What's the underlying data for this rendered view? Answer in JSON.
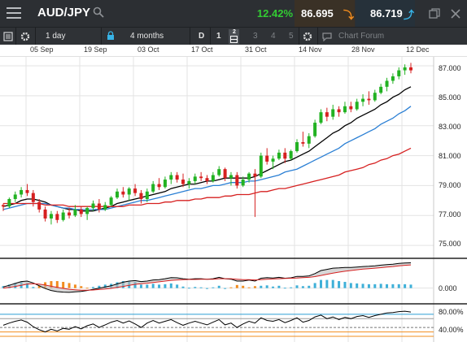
{
  "header": {
    "symbol": "AUD/JPY",
    "change_pct": "12.42%",
    "sell_price": "86.695",
    "buy_price": "86.719",
    "sell_arrow": "down-arrow",
    "buy_arrow": "up-arrow",
    "colors": {
      "positive": "#33cc33",
      "sell_arrow": "#f28c1e",
      "buy_arrow": "#37b3e6"
    }
  },
  "toolbar": {
    "interval": "1 day",
    "range": "4 months",
    "chart_type": "D",
    "layouts": [
      "1",
      "2",
      "3",
      "4",
      "5"
    ],
    "forum": "Chart Forum"
  },
  "date_axis": [
    "05 Sep",
    "19 Sep",
    "03 Oct",
    "17 Oct",
    "31 Oct",
    "14 Nov",
    "28 Nov",
    "12 Dec"
  ],
  "price_axis": [
    "87.000",
    "85.000",
    "83.000",
    "81.000",
    "79.000",
    "77.000",
    "75.000"
  ],
  "macd_axis": [
    "0.000"
  ],
  "rsi_axis": [
    "80.00%",
    "40.00%"
  ],
  "chart_data": {
    "type": "line",
    "ylim": [
      74.3,
      87.6
    ],
    "ohlc": [
      [
        77.7,
        77.8,
        77.3,
        77.6
      ],
      [
        77.6,
        78.2,
        77.5,
        78.1
      ],
      [
        78.1,
        78.6,
        77.9,
        78.4
      ],
      [
        78.4,
        78.9,
        78.2,
        78.7
      ],
      [
        78.7,
        79.1,
        78.3,
        78.5
      ],
      [
        78.5,
        78.7,
        77.6,
        77.9
      ],
      [
        77.9,
        78.1,
        77.2,
        77.4
      ],
      [
        77.4,
        77.6,
        76.6,
        76.8
      ],
      [
        76.8,
        77.3,
        76.4,
        77.1
      ],
      [
        77.1,
        77.3,
        76.5,
        76.7
      ],
      [
        76.7,
        77.4,
        76.6,
        77.2
      ],
      [
        77.2,
        77.5,
        76.8,
        77.0
      ],
      [
        77.0,
        77.7,
        76.9,
        77.4
      ],
      [
        77.4,
        77.6,
        76.9,
        77.1
      ],
      [
        77.1,
        77.6,
        76.7,
        77.5
      ],
      [
        77.5,
        78.0,
        77.3,
        77.8
      ],
      [
        77.8,
        78.1,
        77.2,
        77.4
      ],
      [
        77.4,
        77.9,
        77.3,
        77.7
      ],
      [
        77.7,
        78.3,
        77.6,
        78.2
      ],
      [
        78.2,
        78.8,
        78.1,
        78.6
      ],
      [
        78.6,
        78.9,
        78.2,
        78.4
      ],
      [
        78.4,
        78.9,
        78.0,
        78.8
      ],
      [
        78.8,
        79.1,
        78.3,
        78.5
      ],
      [
        78.5,
        78.7,
        77.8,
        78.1
      ],
      [
        78.1,
        78.8,
        77.9,
        78.6
      ],
      [
        78.6,
        79.3,
        78.5,
        79.1
      ],
      [
        79.1,
        79.5,
        78.7,
        78.9
      ],
      [
        78.9,
        79.6,
        78.8,
        79.4
      ],
      [
        79.4,
        79.9,
        79.1,
        79.7
      ],
      [
        79.7,
        79.9,
        79.2,
        79.4
      ],
      [
        79.4,
        79.8,
        78.9,
        79.1
      ],
      [
        79.1,
        79.5,
        78.8,
        79.3
      ],
      [
        79.3,
        79.8,
        79.1,
        79.6
      ],
      [
        79.6,
        79.9,
        79.3,
        79.5
      ],
      [
        79.5,
        79.7,
        79.1,
        79.3
      ],
      [
        79.3,
        79.9,
        79.2,
        79.7
      ],
      [
        79.7,
        80.3,
        79.6,
        80.1
      ],
      [
        80.1,
        80.2,
        79.3,
        79.5
      ],
      [
        79.5,
        79.9,
        79.0,
        79.7
      ],
      [
        79.7,
        79.9,
        78.8,
        79.0
      ],
      [
        79.0,
        79.6,
        78.9,
        79.4
      ],
      [
        79.4,
        79.9,
        79.2,
        79.8
      ],
      [
        79.8,
        80.1,
        76.9,
        79.6
      ],
      [
        79.6,
        81.2,
        79.5,
        81.0
      ],
      [
        81.0,
        81.5,
        80.4,
        80.6
      ],
      [
        80.6,
        81.0,
        80.1,
        80.8
      ],
      [
        80.8,
        81.4,
        80.7,
        81.2
      ],
      [
        81.2,
        81.5,
        80.5,
        80.8
      ],
      [
        80.8,
        81.4,
        80.7,
        81.3
      ],
      [
        81.3,
        82.1,
        81.2,
        81.9
      ],
      [
        81.9,
        82.6,
        81.6,
        81.8
      ],
      [
        81.8,
        82.5,
        81.5,
        82.3
      ],
      [
        82.3,
        83.4,
        82.2,
        83.2
      ],
      [
        83.2,
        84.1,
        83.1,
        83.9
      ],
      [
        83.9,
        84.2,
        83.3,
        83.6
      ],
      [
        83.6,
        84.4,
        83.4,
        84.1
      ],
      [
        84.1,
        84.3,
        83.6,
        83.9
      ],
      [
        83.9,
        84.6,
        83.8,
        84.3
      ],
      [
        84.3,
        84.6,
        83.9,
        84.1
      ],
      [
        84.1,
        84.8,
        84.0,
        84.6
      ],
      [
        84.6,
        85.1,
        84.3,
        84.8
      ],
      [
        84.8,
        85.3,
        84.4,
        84.7
      ],
      [
        84.7,
        85.4,
        84.6,
        85.2
      ],
      [
        85.2,
        85.8,
        85.1,
        85.6
      ],
      [
        85.6,
        86.2,
        85.3,
        86.0
      ],
      [
        86.0,
        86.5,
        85.8,
        86.3
      ],
      [
        86.3,
        86.9,
        86.1,
        86.7
      ],
      [
        86.7,
        87.1,
        86.4,
        86.9
      ],
      [
        86.9,
        87.2,
        86.5,
        86.7
      ]
    ],
    "series": [
      {
        "color": "#000000",
        "values": [
          77.6,
          77.7,
          77.8,
          78.0,
          78.1,
          78.1,
          78.0,
          77.9,
          77.7,
          77.6,
          77.5,
          77.4,
          77.4,
          77.3,
          77.3,
          77.3,
          77.4,
          77.5,
          77.6,
          77.8,
          77.9,
          78.0,
          78.1,
          78.2,
          78.3,
          78.4,
          78.5,
          78.6,
          78.8,
          78.9,
          79.0,
          79.1,
          79.1,
          79.2,
          79.3,
          79.3,
          79.4,
          79.5,
          79.5,
          79.5,
          79.5,
          79.5,
          79.6,
          79.8,
          80.0,
          80.2,
          80.4,
          80.6,
          80.7,
          80.9,
          81.1,
          81.3,
          81.6,
          81.9,
          82.2,
          82.5,
          82.7,
          83.0,
          83.2,
          83.5,
          83.7,
          83.9,
          84.1,
          84.4,
          84.6,
          84.9,
          85.1,
          85.4,
          85.6
        ]
      },
      {
        "color": "#2a7fd4",
        "values": [
          77.4,
          77.5,
          77.6,
          77.7,
          77.8,
          77.8,
          77.8,
          77.8,
          77.7,
          77.6,
          77.5,
          77.5,
          77.4,
          77.4,
          77.4,
          77.4,
          77.4,
          77.4,
          77.5,
          77.6,
          77.7,
          77.8,
          77.9,
          78.0,
          78.0,
          78.1,
          78.2,
          78.3,
          78.4,
          78.5,
          78.6,
          78.7,
          78.8,
          78.8,
          78.9,
          79.0,
          79.0,
          79.1,
          79.2,
          79.2,
          79.2,
          79.3,
          79.3,
          79.4,
          79.5,
          79.6,
          79.7,
          79.9,
          80.0,
          80.1,
          80.3,
          80.5,
          80.7,
          80.9,
          81.1,
          81.3,
          81.5,
          81.8,
          82.0,
          82.2,
          82.4,
          82.6,
          82.8,
          83.1,
          83.3,
          83.5,
          83.8,
          84.0,
          84.3
        ]
      },
      {
        "color": "#d62020",
        "values": [
          77.8,
          77.8,
          77.8,
          77.8,
          77.8,
          77.8,
          77.8,
          77.7,
          77.7,
          77.7,
          77.7,
          77.6,
          77.6,
          77.6,
          77.6,
          77.6,
          77.6,
          77.6,
          77.6,
          77.6,
          77.6,
          77.7,
          77.7,
          77.7,
          77.8,
          77.8,
          77.8,
          77.9,
          77.9,
          78.0,
          78.0,
          78.0,
          78.1,
          78.1,
          78.2,
          78.2,
          78.2,
          78.3,
          78.3,
          78.4,
          78.4,
          78.4,
          78.5,
          78.6,
          78.6,
          78.7,
          78.8,
          78.8,
          78.9,
          79.0,
          79.1,
          79.2,
          79.3,
          79.4,
          79.5,
          79.6,
          79.7,
          79.9,
          80.0,
          80.1,
          80.2,
          80.4,
          80.5,
          80.7,
          80.8,
          81.0,
          81.1,
          81.3,
          81.5
        ]
      }
    ],
    "macd": {
      "ylim": [
        -0.6,
        1.2
      ],
      "line": [
        0.05,
        0.12,
        0.2,
        0.28,
        0.3,
        0.22,
        0.1,
        -0.02,
        -0.1,
        -0.15,
        -0.17,
        -0.18,
        -0.16,
        -0.14,
        -0.1,
        -0.05,
        0.0,
        0.05,
        0.1,
        0.18,
        0.25,
        0.3,
        0.32,
        0.28,
        0.3,
        0.35,
        0.36,
        0.4,
        0.45,
        0.44,
        0.4,
        0.38,
        0.4,
        0.4,
        0.38,
        0.4,
        0.46,
        0.4,
        0.38,
        0.3,
        0.3,
        0.34,
        0.3,
        0.42,
        0.45,
        0.43,
        0.46,
        0.42,
        0.44,
        0.5,
        0.5,
        0.52,
        0.62,
        0.75,
        0.8,
        0.85,
        0.86,
        0.88,
        0.88,
        0.9,
        0.92,
        0.93,
        0.95,
        0.98,
        1.0,
        1.02,
        1.05,
        1.07,
        1.08
      ],
      "signal": [
        0.0,
        0.03,
        0.07,
        0.12,
        0.17,
        0.19,
        0.17,
        0.13,
        0.08,
        0.03,
        -0.01,
        -0.05,
        -0.07,
        -0.09,
        -0.09,
        -0.08,
        -0.06,
        -0.04,
        -0.01,
        0.03,
        0.07,
        0.12,
        0.16,
        0.19,
        0.21,
        0.24,
        0.27,
        0.3,
        0.33,
        0.35,
        0.36,
        0.37,
        0.37,
        0.38,
        0.38,
        0.38,
        0.4,
        0.4,
        0.4,
        0.38,
        0.36,
        0.36,
        0.35,
        0.36,
        0.38,
        0.39,
        0.4,
        0.41,
        0.42,
        0.43,
        0.45,
        0.46,
        0.49,
        0.54,
        0.59,
        0.64,
        0.68,
        0.72,
        0.75,
        0.78,
        0.81,
        0.83,
        0.85,
        0.87,
        0.9,
        0.92,
        0.95,
        0.97,
        0.99
      ]
    },
    "rsi": {
      "ylim": [
        30,
        100
      ],
      "levels": [
        80,
        70,
        50,
        40,
        30
      ],
      "values": [
        55,
        60,
        64,
        67,
        62,
        52,
        45,
        40,
        46,
        42,
        48,
        46,
        52,
        47,
        54,
        58,
        50,
        56,
        62,
        66,
        60,
        65,
        58,
        50,
        60,
        66,
        60,
        64,
        68,
        61,
        55,
        60,
        64,
        60,
        56,
        62,
        68,
        56,
        60,
        50,
        58,
        64,
        60,
        72,
        66,
        64,
        68,
        61,
        66,
        72,
        62,
        66,
        74,
        78,
        70,
        74,
        68,
        73,
        70,
        75,
        77,
        73,
        77,
        80,
        83,
        84,
        86,
        87,
        85
      ]
    }
  }
}
